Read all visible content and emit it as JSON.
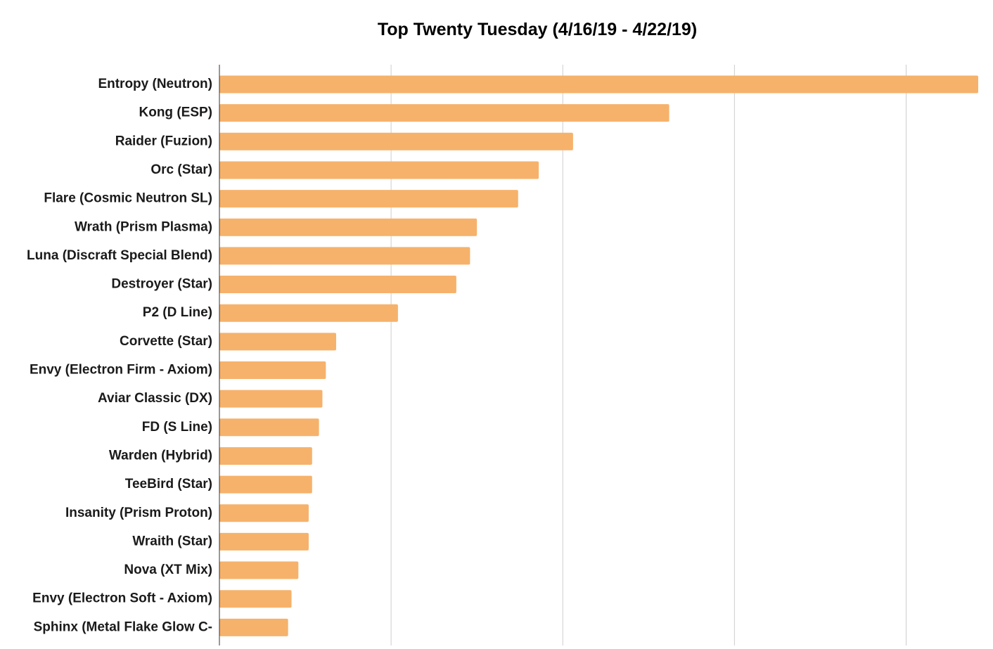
{
  "chart_data": {
    "type": "bar",
    "orientation": "horizontal",
    "title": "Top Twenty Tuesday (4/16/19 - 4/22/19)",
    "xlabel": "",
    "ylabel": "",
    "categories": [
      "Entropy (Neutron)",
      "Kong (ESP)",
      "Raider (Fuzion)",
      "Orc (Star)",
      "Flare (Cosmic Neutron SL)",
      "Wrath (Prism Plasma)",
      "Luna (Discraft Special Blend)",
      "Destroyer (Star)",
      "P2 (D Line)",
      "Corvette (Star)",
      "Envy (Electron Firm - Axiom)",
      "Aviar Classic (DX)",
      "FD (S Line)",
      "Warden (Hybrid)",
      "TeeBird (Star)",
      "Insanity (Prism Proton)",
      "Wraith (Star)",
      "Nova (XT Mix)",
      "Envy (Electron Soft - Axiom)",
      "Sphinx (Metal Flake Glow C-"
    ],
    "values": [
      22.1,
      13.1,
      10.3,
      9.3,
      8.7,
      7.5,
      7.3,
      6.9,
      5.2,
      3.4,
      3.1,
      3.0,
      2.9,
      2.7,
      2.7,
      2.6,
      2.6,
      2.3,
      2.1,
      2.0
    ],
    "xlim": [
      0,
      22.1
    ],
    "gridlines_x": [
      0,
      5,
      10,
      15,
      20
    ],
    "grid": true,
    "x_tick_labels_shown": false,
    "legend": "none",
    "bar_color": "#f6b26b",
    "grid_color": "#cccccc",
    "axis_color": "#333333"
  }
}
